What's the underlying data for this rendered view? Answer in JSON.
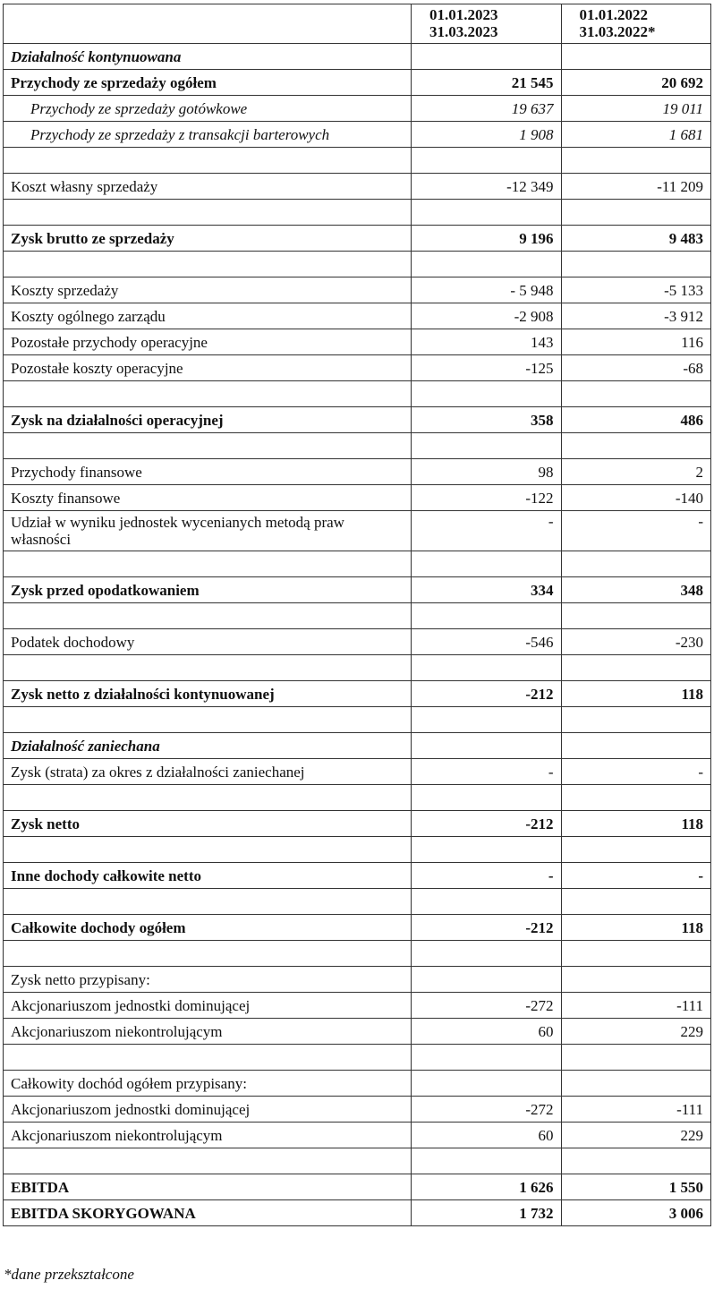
{
  "header": {
    "col1": "",
    "col2_line1": "01.01.2023",
    "col2_line2": "31.03.2023",
    "col3_line1": "01.01.2022",
    "col3_line2": "31.03.2022*"
  },
  "rows": [
    {
      "label": "Działalność kontynuowana",
      "v2023": "",
      "v2022": "",
      "style": "section"
    },
    {
      "label": "Przychody ze sprzedaży ogółem",
      "v2023": "21 545",
      "v2022": "20 692",
      "style": "bold"
    },
    {
      "label": "Przychody ze sprzedaży gotówkowe",
      "v2023": "19 637",
      "v2022": "19 011",
      "style": "italic indent"
    },
    {
      "label": "Przychody ze sprzedaży z transakcji barterowych",
      "v2023": "1 908",
      "v2022": "1 681",
      "style": "italic indent"
    },
    {
      "label": "",
      "v2023": "",
      "v2022": "",
      "style": ""
    },
    {
      "label": "Koszt własny sprzedaży",
      "v2023": "-12 349",
      "v2022": "-11 209",
      "style": ""
    },
    {
      "label": "",
      "v2023": "",
      "v2022": "",
      "style": ""
    },
    {
      "label": "Zysk  brutto ze sprzedaży",
      "v2023": "9 196",
      "v2022": "9 483",
      "style": "bold"
    },
    {
      "label": "",
      "v2023": "",
      "v2022": "",
      "style": ""
    },
    {
      "label": "Koszty sprzedaży",
      "v2023": "- 5 948",
      "v2022": "-5 133",
      "style": ""
    },
    {
      "label": "Koszty ogólnego zarządu",
      "v2023": "-2 908",
      "v2022": "-3 912",
      "style": ""
    },
    {
      "label": "Pozostałe przychody operacyjne",
      "v2023": "143",
      "v2022": "116",
      "style": ""
    },
    {
      "label": "Pozostałe koszty operacyjne",
      "v2023": "-125",
      "v2022": "-68",
      "style": ""
    },
    {
      "label": "",
      "v2023": "",
      "v2022": "",
      "style": ""
    },
    {
      "label": "Zysk na działalności operacyjnej",
      "v2023": "358",
      "v2022": "486",
      "style": "bold"
    },
    {
      "label": "",
      "v2023": "",
      "v2022": "",
      "style": ""
    },
    {
      "label": "Przychody finansowe",
      "v2023": "98",
      "v2022": "2",
      "style": ""
    },
    {
      "label": "Koszty finansowe",
      "v2023": "-122",
      "v2022": "-140",
      "style": ""
    },
    {
      "label": "Udział w wyniku jednostek wycenianych metodą praw własności",
      "v2023": "-",
      "v2022": "-",
      "style": "tall"
    },
    {
      "label": "",
      "v2023": "",
      "v2022": "",
      "style": ""
    },
    {
      "label": "Zysk przed opodatkowaniem",
      "v2023": "334",
      "v2022": "348",
      "style": "bold"
    },
    {
      "label": "",
      "v2023": "",
      "v2022": "",
      "style": ""
    },
    {
      "label": "Podatek dochodowy",
      "v2023": "-546",
      "v2022": "-230",
      "style": ""
    },
    {
      "label": "",
      "v2023": "",
      "v2022": "",
      "style": ""
    },
    {
      "label": "Zysk netto z działalności kontynuowanej",
      "v2023": "-212",
      "v2022": "118",
      "style": "bold"
    },
    {
      "label": "",
      "v2023": "",
      "v2022": "",
      "style": ""
    },
    {
      "label": "Działalność zaniechana",
      "v2023": "",
      "v2022": "",
      "style": "section"
    },
    {
      "label": "Zysk (strata) za okres z działalności zaniechanej",
      "v2023": "-",
      "v2022": "-",
      "style": ""
    },
    {
      "label": "",
      "v2023": "",
      "v2022": "",
      "style": ""
    },
    {
      "label": "Zysk netto",
      "v2023": "-212",
      "v2022": "118",
      "style": "bold"
    },
    {
      "label": "",
      "v2023": "",
      "v2022": "",
      "style": ""
    },
    {
      "label": "Inne dochody całkowite netto",
      "v2023": "-",
      "v2022": "-",
      "style": "bold"
    },
    {
      "label": "",
      "v2023": "",
      "v2022": "",
      "style": ""
    },
    {
      "label": "Całkowite dochody ogółem",
      "v2023": "-212",
      "v2022": "118",
      "style": "bold"
    },
    {
      "label": "",
      "v2023": "",
      "v2022": "",
      "style": ""
    },
    {
      "label": "Zysk netto przypisany:",
      "v2023": "",
      "v2022": "",
      "style": ""
    },
    {
      "label": "Akcjonariuszom jednostki dominującej",
      "v2023": "-272",
      "v2022": "-111",
      "style": ""
    },
    {
      "label": "Akcjonariuszom niekontrolującym",
      "v2023": "60",
      "v2022": "229",
      "style": ""
    },
    {
      "label": "",
      "v2023": "",
      "v2022": "",
      "style": ""
    },
    {
      "label": "Całkowity dochód ogółem przypisany:",
      "v2023": "",
      "v2022": "",
      "style": ""
    },
    {
      "label": "Akcjonariuszom jednostki dominującej",
      "v2023": "-272",
      "v2022": "-111",
      "style": ""
    },
    {
      "label": "Akcjonariuszom niekontrolującym",
      "v2023": "60",
      "v2022": "229",
      "style": ""
    },
    {
      "label": "",
      "v2023": "",
      "v2022": "",
      "style": ""
    },
    {
      "label": "EBITDA",
      "v2023": "1 626",
      "v2022": "1 550",
      "style": "bold"
    },
    {
      "label": "EBITDA SKORYGOWANA",
      "v2023": "1 732",
      "v2022": "3 006",
      "style": "bold"
    }
  ],
  "footnote": "*dane przekształcone"
}
